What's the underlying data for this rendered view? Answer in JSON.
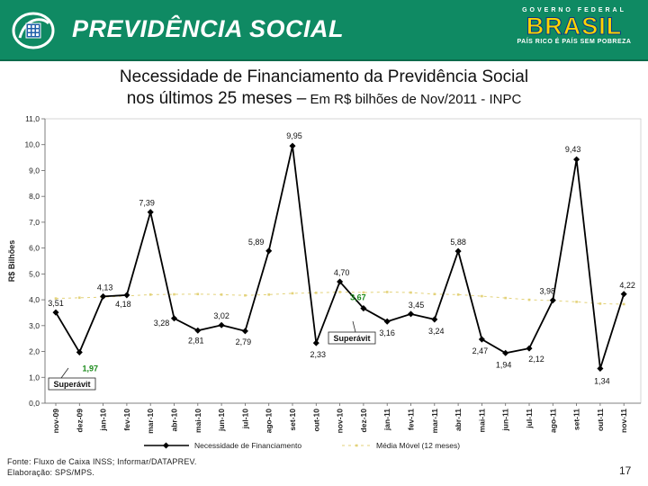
{
  "header": {
    "title": "PREVIDÊNCIA SOCIAL",
    "gov_top": "GOVERNO FEDERAL",
    "gov_main": "BRASIL",
    "gov_tagline": "PAÍS RICO É PAÍS SEM POBREZA"
  },
  "slide": {
    "title_line1": "Necessidade de Financiamento da Previdência Social",
    "title_line2_main": "nos últimos 25 meses –",
    "title_line2_sub": " Em R$ bilhões de Nov/2011 - INPC",
    "footer_source": "Fonte: Fluxo de Caixa INSS; Informar/DATAPREV.",
    "footer_credit": "Elaboração: SPS/MPS.",
    "page_number": "17"
  },
  "colors": {
    "header_green": "#0f8a63",
    "series_line": "#000000",
    "moving_avg": "#e3d27a"
  },
  "chart_data": {
    "type": "line",
    "ylabel": "R$ Bilhões",
    "ylim": [
      0,
      11
    ],
    "yticks": [
      "0,0",
      "1,0",
      "2,0",
      "3,0",
      "4,0",
      "5,0",
      "6,0",
      "7,0",
      "8,0",
      "9,0",
      "10,0",
      "11,0"
    ],
    "categories": [
      "nov-09",
      "dez-09",
      "jan-10",
      "fev-10",
      "mar-10",
      "abr-10",
      "mai-10",
      "jun-10",
      "jul-10",
      "ago-10",
      "set-10",
      "out-10",
      "nov-10",
      "dez-10",
      "jan-11",
      "fev-11",
      "mar-11",
      "abr-11",
      "mai-11",
      "jun-11",
      "jul-11",
      "ago-11",
      "set-11",
      "out-11",
      "nov-11"
    ],
    "series": [
      {
        "name": "Necessidade de Financiamento",
        "values": [
          3.51,
          1.97,
          4.13,
          4.18,
          7.39,
          3.28,
          2.81,
          3.02,
          2.79,
          5.89,
          9.95,
          2.33,
          4.7,
          3.67,
          3.16,
          3.45,
          3.24,
          5.88,
          2.47,
          1.94,
          2.12,
          3.98,
          9.43,
          1.34,
          4.22
        ],
        "labels": [
          "3,51",
          "1,97",
          "4,13",
          "4,18",
          "7,39",
          "3,28",
          "2,81",
          "3,02",
          "2,79",
          "5,89",
          "9,95",
          "2,33",
          "4,70",
          "3,67",
          "3,16",
          "3,45",
          "3,24",
          "5,88",
          "2,47",
          "1,94",
          "2,12",
          "3,98",
          "9,43",
          "1,34",
          "4,22"
        ]
      },
      {
        "name": "Média Móvel (12 meses)",
        "values": [
          4.05,
          4.08,
          4.1,
          4.15,
          4.2,
          4.21,
          4.22,
          4.2,
          4.17,
          4.2,
          4.25,
          4.27,
          4.3,
          4.28,
          4.3,
          4.28,
          4.22,
          4.2,
          4.14,
          4.07,
          4.0,
          3.97,
          3.92,
          3.85,
          3.83
        ]
      }
    ],
    "annotations": [
      {
        "text": "Superávit",
        "point": "dez-09",
        "value": 1.97,
        "value_label": "1,97"
      },
      {
        "text": "Superávit",
        "point": "dez-10",
        "value": 3.67,
        "value_label": "3,67"
      }
    ],
    "legend_position": "bottom"
  }
}
